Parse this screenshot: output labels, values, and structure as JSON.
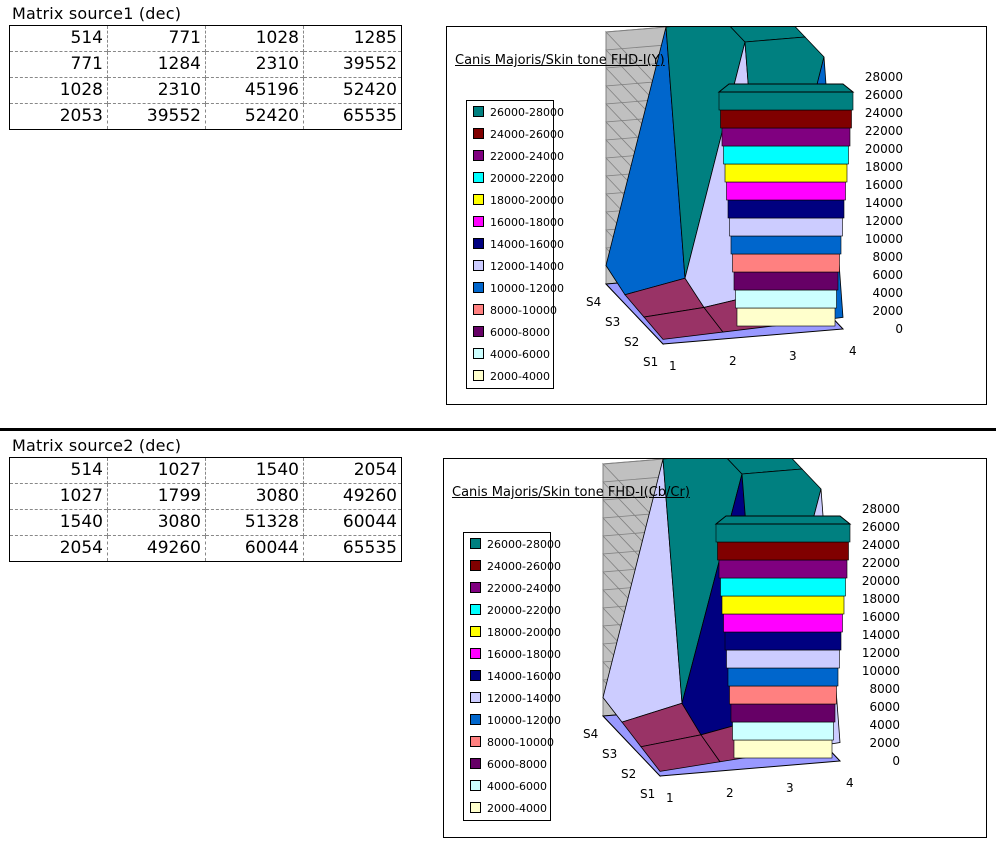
{
  "sections": [
    {
      "title": "Matrix source1 (dec)",
      "matrix": [
        [
          "514",
          "771",
          "1028",
          "1285"
        ],
        [
          "771",
          "1284",
          "2310",
          "39552"
        ],
        [
          "1028",
          "2310",
          "45196",
          "52420"
        ],
        [
          "2053",
          "39552",
          "52420",
          "65535"
        ]
      ],
      "chart": {
        "title": "Canis Majoris/Skin tone FHD-I(Y)",
        "legend": [
          "26000-28000",
          "24000-26000",
          "22000-24000",
          "20000-22000",
          "18000-20000",
          "16000-18000",
          "14000-16000",
          "12000-14000",
          "10000-12000",
          "8000-10000",
          "6000-8000",
          "4000-6000",
          "2000-4000"
        ],
        "yticks": [
          "28000",
          "26000",
          "24000",
          "22000",
          "20000",
          "18000",
          "16000",
          "14000",
          "12000",
          "10000",
          "8000",
          "6000",
          "4000",
          "2000",
          "0"
        ],
        "series_labels": [
          "S4",
          "S3",
          "S2",
          "S1"
        ],
        "x_labels": [
          "1",
          "2",
          "3",
          "4"
        ]
      }
    },
    {
      "title": "Matrix source2 (dec)",
      "matrix": [
        [
          "514",
          "1027",
          "1540",
          "2054"
        ],
        [
          "1027",
          "1799",
          "3080",
          "49260"
        ],
        [
          "1540",
          "3080",
          "51328",
          "60044"
        ],
        [
          "2054",
          "49260",
          "60044",
          "65535"
        ]
      ],
      "chart": {
        "title": "Canis Majoris/Skin tone FHD-I(Cb/Cr)",
        "legend": [
          "26000-28000",
          "24000-26000",
          "22000-24000",
          "20000-22000",
          "18000-20000",
          "16000-18000",
          "14000-16000",
          "12000-14000",
          "10000-12000",
          "8000-10000",
          "6000-8000",
          "4000-6000",
          "2000-4000"
        ],
        "yticks": [
          "28000",
          "26000",
          "24000",
          "22000",
          "20000",
          "18000",
          "16000",
          "14000",
          "12000",
          "10000",
          "8000",
          "6000",
          "4000",
          "2000",
          "0"
        ],
        "series_labels": [
          "S4",
          "S3",
          "S2",
          "S1"
        ],
        "x_labels": [
          "1",
          "2",
          "3",
          "4"
        ]
      }
    }
  ],
  "chart_data": [
    {
      "type": "surface",
      "title": "Canis Majoris/Skin tone FHD-I(Y)",
      "x": [
        "1",
        "2",
        "3",
        "4"
      ],
      "series": [
        {
          "name": "S1",
          "values": [
            514,
            771,
            1028,
            1285
          ]
        },
        {
          "name": "S2",
          "values": [
            771,
            1284,
            2310,
            39552
          ]
        },
        {
          "name": "S3",
          "values": [
            1028,
            2310,
            45196,
            52420
          ]
        },
        {
          "name": "S4",
          "values": [
            2053,
            39552,
            52420,
            65535
          ]
        }
      ],
      "zlim": [
        0,
        28000
      ],
      "band_colors": [
        "#993366",
        "#ffffcc",
        "#ccffff",
        "#660066",
        "#ff8080",
        "#0066cc",
        "#ccccff",
        "#000080",
        "#ff00ff",
        "#ffff00",
        "#00ffff",
        "#800080",
        "#800000",
        "#008080"
      ]
    },
    {
      "type": "surface",
      "title": "Canis Majoris/Skin tone FHD-I(Cb/Cr)",
      "x": [
        "1",
        "2",
        "3",
        "4"
      ],
      "series": [
        {
          "name": "S1",
          "values": [
            514,
            1027,
            1540,
            2054
          ]
        },
        {
          "name": "S2",
          "values": [
            1027,
            1799,
            3080,
            49260
          ]
        },
        {
          "name": "S3",
          "values": [
            1540,
            3080,
            51328,
            60044
          ]
        },
        {
          "name": "S4",
          "values": [
            2054,
            49260,
            60044,
            65535
          ]
        }
      ],
      "zlim": [
        0,
        28000
      ],
      "band_colors": [
        "#993366",
        "#ffffcc",
        "#ccffff",
        "#660066",
        "#ff8080",
        "#0066cc",
        "#ccccff",
        "#000080",
        "#ff00ff",
        "#ffff00",
        "#00ffff",
        "#800080",
        "#800000",
        "#008080"
      ]
    }
  ]
}
